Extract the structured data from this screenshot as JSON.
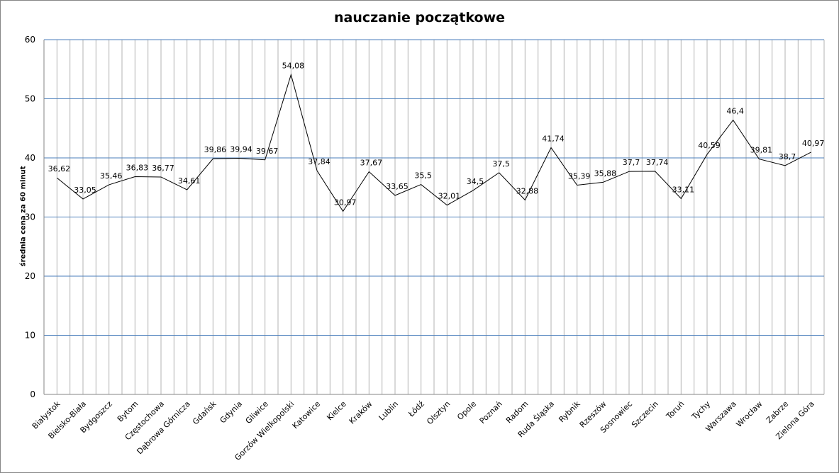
{
  "chart_data": {
    "type": "line",
    "title": "nauczanie początkowe",
    "xlabel": "",
    "ylabel": "średnia cena za 60 minut",
    "ylim": [
      0,
      60
    ],
    "yticks": [
      0,
      10,
      20,
      30,
      40,
      50,
      60
    ],
    "grid": true,
    "categories": [
      "Białystok",
      "Bielsko-Biała",
      "Bydgoszcz",
      "Bytom",
      "Częstochowa",
      "Dąbrowa Górnicza",
      "Gdańsk",
      "Gdynia",
      "Gliwice",
      "Gorzów Wielkopolski",
      "Katowice",
      "Kielce",
      "Kraków",
      "Lublin",
      "Łódź",
      "Olsztyn",
      "Opole",
      "Poznań",
      "Radom",
      "Ruda Śląska",
      "Rybnik",
      "Rzeszów",
      "Sosnowiec",
      "Szczecin",
      "Toruń",
      "Tychy",
      "Warszawa",
      "Wrocław",
      "Zabrze",
      "Zielona Góra"
    ],
    "values": [
      36.62,
      33.05,
      35.46,
      36.83,
      36.77,
      34.61,
      39.86,
      39.94,
      39.67,
      54.08,
      37.84,
      30.97,
      37.67,
      33.65,
      35.5,
      32.01,
      34.5,
      37.5,
      32.88,
      41.74,
      35.39,
      35.88,
      37.7,
      37.74,
      33.11,
      40.59,
      46.4,
      39.81,
      38.7,
      40.97
    ],
    "data_labels": [
      "36,62",
      "33,05",
      "35,46",
      "36,83",
      "36,77",
      "34,61",
      "39,86",
      "39,94",
      "39,67",
      "54,08",
      "37,84",
      "30,97",
      "37,67",
      "33,65",
      "35,5",
      "32,01",
      "34,5",
      "37,5",
      "32,88",
      "41,74",
      "35,39",
      "35,88",
      "37,7",
      "37,74",
      "33,11",
      "40,59",
      "46,4",
      "39,81",
      "38,7",
      "40,97"
    ],
    "colors": {
      "line": "#000000",
      "hgrid": "#4a7ebb",
      "vgrid": "#b3b3b3"
    }
  }
}
